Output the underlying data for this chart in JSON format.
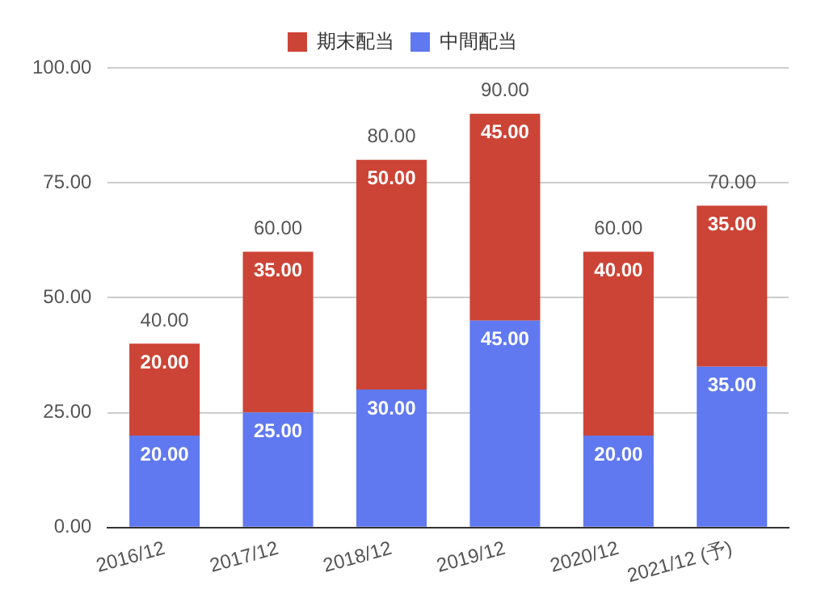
{
  "chart_data": {
    "type": "bar",
    "stacked": true,
    "categories": [
      "2016/12",
      "2017/12",
      "2018/12",
      "2019/12",
      "2020/12",
      "2021/12 (予)"
    ],
    "series": [
      {
        "name": "中間配当",
        "color": "#6079f0",
        "values": [
          20,
          25,
          30,
          45,
          20,
          35
        ],
        "value_labels": [
          "20.00",
          "25.00",
          "30.00",
          "45.00",
          "20.00",
          "35.00"
        ]
      },
      {
        "name": "期末配当",
        "color": "#cc4436",
        "values": [
          20,
          35,
          50,
          45,
          40,
          35
        ],
        "value_labels": [
          "20.00",
          "35.00",
          "50.00",
          "45.00",
          "40.00",
          "35.00"
        ]
      }
    ],
    "totals": [
      "40.00",
      "60.00",
      "80.00",
      "90.00",
      "60.00",
      "70.00"
    ],
    "ylim": [
      0,
      100
    ],
    "yticks": [
      {
        "value": 0,
        "label": "0.00"
      },
      {
        "value": 25,
        "label": "25.00"
      },
      {
        "value": 50,
        "label": "50.00"
      },
      {
        "value": 75,
        "label": "75.00"
      },
      {
        "value": 100,
        "label": "100.00"
      }
    ],
    "grid": "y",
    "legend": "top"
  }
}
